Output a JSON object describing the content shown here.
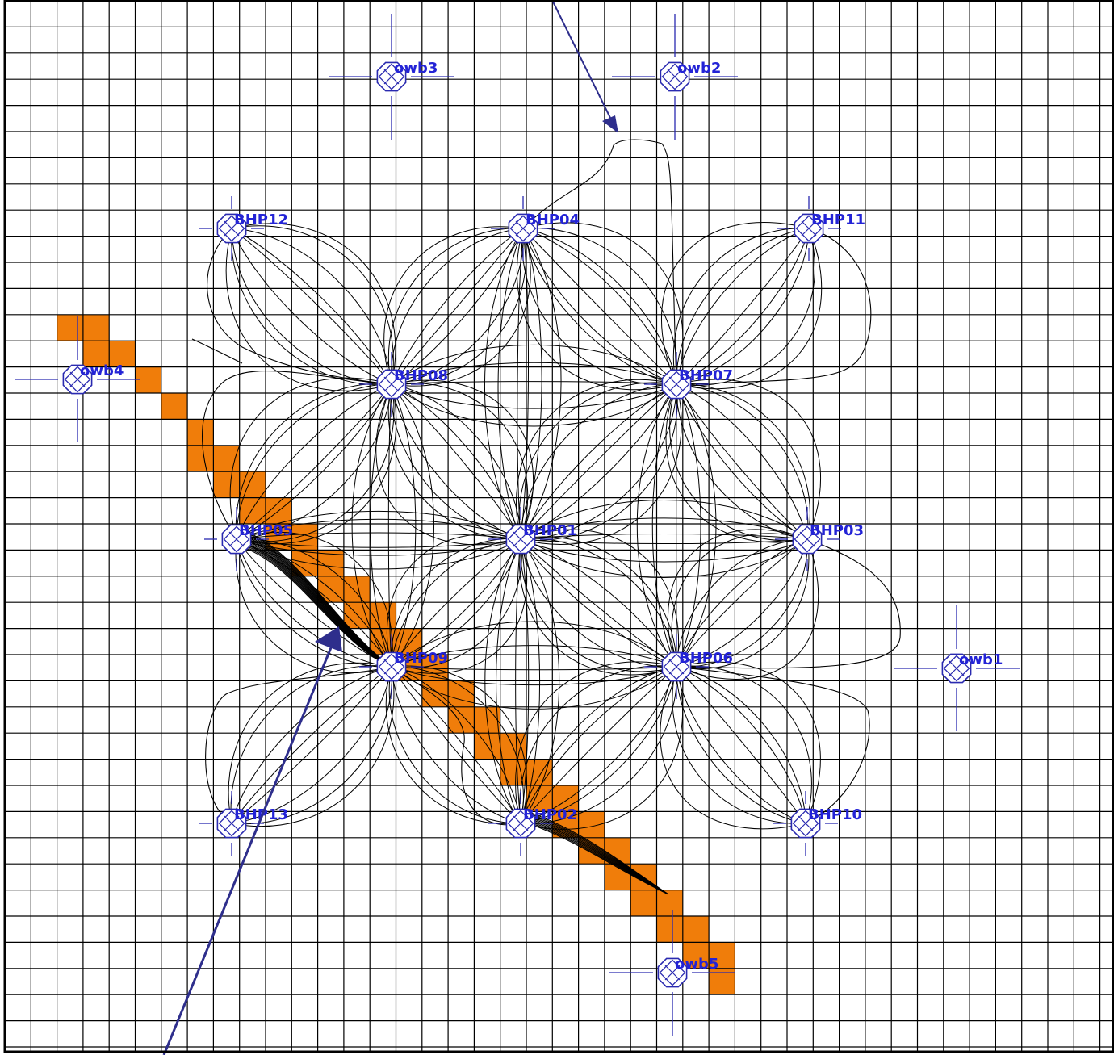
{
  "colors": {
    "grid": "#000000",
    "highlight_cell": "#f07d0a",
    "label": "#2323d6",
    "well_symbol": "#2a2ab0",
    "arrow": "#2e2e8c",
    "streamline": "#000000",
    "background": "#ffffff"
  },
  "wells": [
    {
      "name": "BHP01",
      "label": "BHP01",
      "type": "producer"
    },
    {
      "name": "BHP02",
      "label": "BHP02",
      "type": "producer"
    },
    {
      "name": "BHP03",
      "label": "BHP03",
      "type": "producer"
    },
    {
      "name": "BHP04",
      "label": "BHP04",
      "type": "producer"
    },
    {
      "name": "BHP05",
      "label": "BHP05",
      "type": "producer"
    },
    {
      "name": "BHP06",
      "label": "BHP06",
      "type": "producer"
    },
    {
      "name": "BHP07",
      "label": "BHP07",
      "type": "producer"
    },
    {
      "name": "BHP08",
      "label": "BHP08",
      "type": "producer"
    },
    {
      "name": "BHP09",
      "label": "BHP09",
      "type": "producer"
    },
    {
      "name": "BHP10",
      "label": "BHP10",
      "type": "producer"
    },
    {
      "name": "BHP11",
      "label": "BHP11",
      "type": "producer"
    },
    {
      "name": "BHP12",
      "label": "BHP12",
      "type": "producer"
    },
    {
      "name": "BHP13",
      "label": "BHP13",
      "type": "producer"
    },
    {
      "name": "owb1",
      "label": "owb1",
      "type": "observation"
    },
    {
      "name": "owb2",
      "label": "owb2",
      "type": "observation"
    },
    {
      "name": "owb3",
      "label": "owb3",
      "type": "observation"
    },
    {
      "name": "owb4",
      "label": "owb4",
      "type": "observation"
    },
    {
      "name": "owb5",
      "label": "owb5",
      "type": "observation"
    }
  ]
}
